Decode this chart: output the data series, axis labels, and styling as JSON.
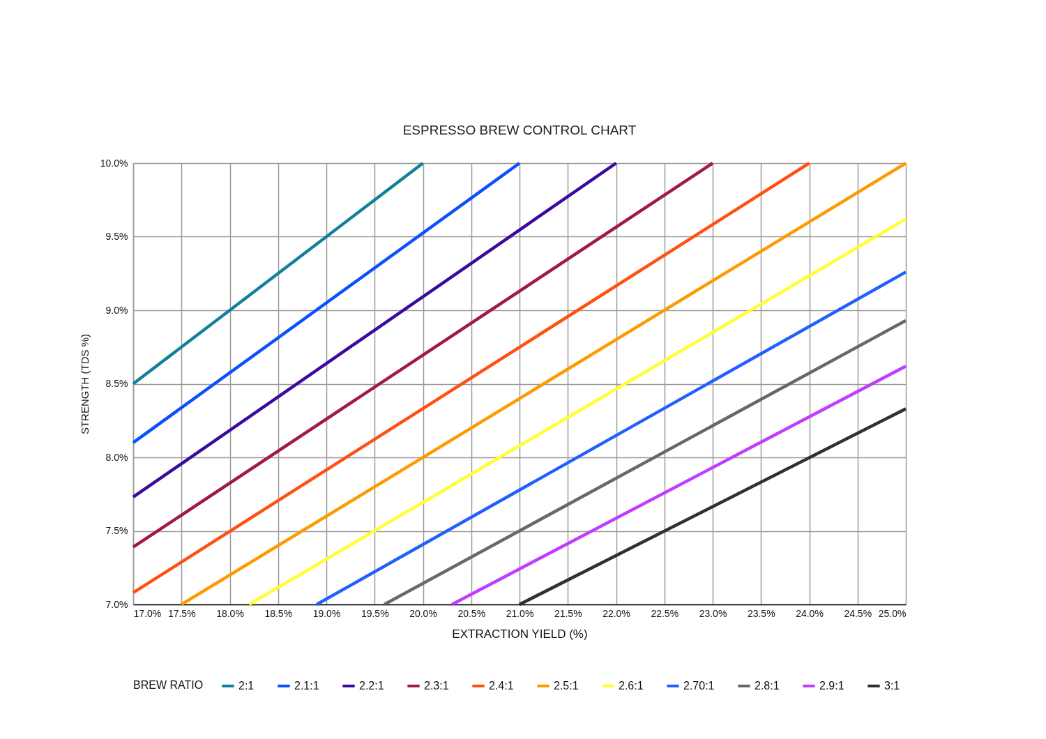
{
  "chart_data": {
    "type": "line",
    "title": "ESPRESSO BREW CONTROL CHART",
    "xlabel": "EXTRACTION YIELD (%)",
    "ylabel": "STRENGTH (TDS %)",
    "legend_title": "BREW RATIO",
    "xlim": [
      17,
      25
    ],
    "ylim": [
      7,
      10
    ],
    "xticks": [
      {
        "value": 17,
        "label": "17.0%"
      },
      {
        "value": 17.5,
        "label": "17.5%"
      },
      {
        "value": 18,
        "label": "18.0%"
      },
      {
        "value": 18.5,
        "label": "18.5%"
      },
      {
        "value": 19,
        "label": "19.0%"
      },
      {
        "value": 19.5,
        "label": "19.5%"
      },
      {
        "value": 20,
        "label": "20.0%"
      },
      {
        "value": 20.5,
        "label": "20.5%"
      },
      {
        "value": 21,
        "label": "21.0%"
      },
      {
        "value": 21.5,
        "label": "21.5%"
      },
      {
        "value": 22,
        "label": "22.0%"
      },
      {
        "value": 22.5,
        "label": "22.5%"
      },
      {
        "value": 23,
        "label": "23.0%"
      },
      {
        "value": 23.5,
        "label": "23.5%"
      },
      {
        "value": 24,
        "label": "24.0%"
      },
      {
        "value": 24.5,
        "label": "24.5%"
      },
      {
        "value": 25,
        "label": "25.0%"
      }
    ],
    "yticks": [
      {
        "value": 7,
        "label": "7.0%"
      },
      {
        "value": 7.5,
        "label": "7.5%"
      },
      {
        "value": 8,
        "label": "8.0%"
      },
      {
        "value": 8.5,
        "label": "8.5%"
      },
      {
        "value": 9,
        "label": "9.0%"
      },
      {
        "value": 9.5,
        "label": "9.5%"
      },
      {
        "value": 10,
        "label": "10.0%"
      }
    ],
    "grid": true,
    "legend": "bottom",
    "series": [
      {
        "name": "2:1",
        "color": "#11809a",
        "x": [
          17,
          20
        ],
        "values": [
          8.5,
          10
        ]
      },
      {
        "name": "2.1:1",
        "color": "#0a50ff",
        "x": [
          17,
          21
        ],
        "values": [
          8.1,
          10
        ]
      },
      {
        "name": "2.2:1",
        "color": "#3a0aa0",
        "x": [
          17,
          22
        ],
        "values": [
          7.73,
          10
        ]
      },
      {
        "name": "2.3:1",
        "color": "#a0184c",
        "x": [
          17,
          23
        ],
        "values": [
          7.39,
          10
        ]
      },
      {
        "name": "2.4:1",
        "color": "#ff5010",
        "x": [
          17,
          24
        ],
        "values": [
          7.08,
          10
        ]
      },
      {
        "name": "2.5:1",
        "color": "#ff9a00",
        "x": [
          17.5,
          25
        ],
        "values": [
          7,
          10
        ]
      },
      {
        "name": "2.6:1",
        "color": "#ffff33",
        "x": [
          18.2,
          25
        ],
        "values": [
          7,
          9.62
        ]
      },
      {
        "name": "2.70:1",
        "color": "#2060ff",
        "x": [
          18.9,
          25
        ],
        "values": [
          7,
          9.26
        ]
      },
      {
        "name": "2.8:1",
        "color": "#686868",
        "x": [
          19.6,
          25
        ],
        "values": [
          7,
          8.93
        ]
      },
      {
        "name": "2.9:1",
        "color": "#c03cff",
        "x": [
          20.3,
          25
        ],
        "values": [
          7,
          8.62
        ]
      },
      {
        "name": "3:1",
        "color": "#303030",
        "x": [
          21,
          25
        ],
        "values": [
          7,
          8.33
        ]
      }
    ]
  }
}
